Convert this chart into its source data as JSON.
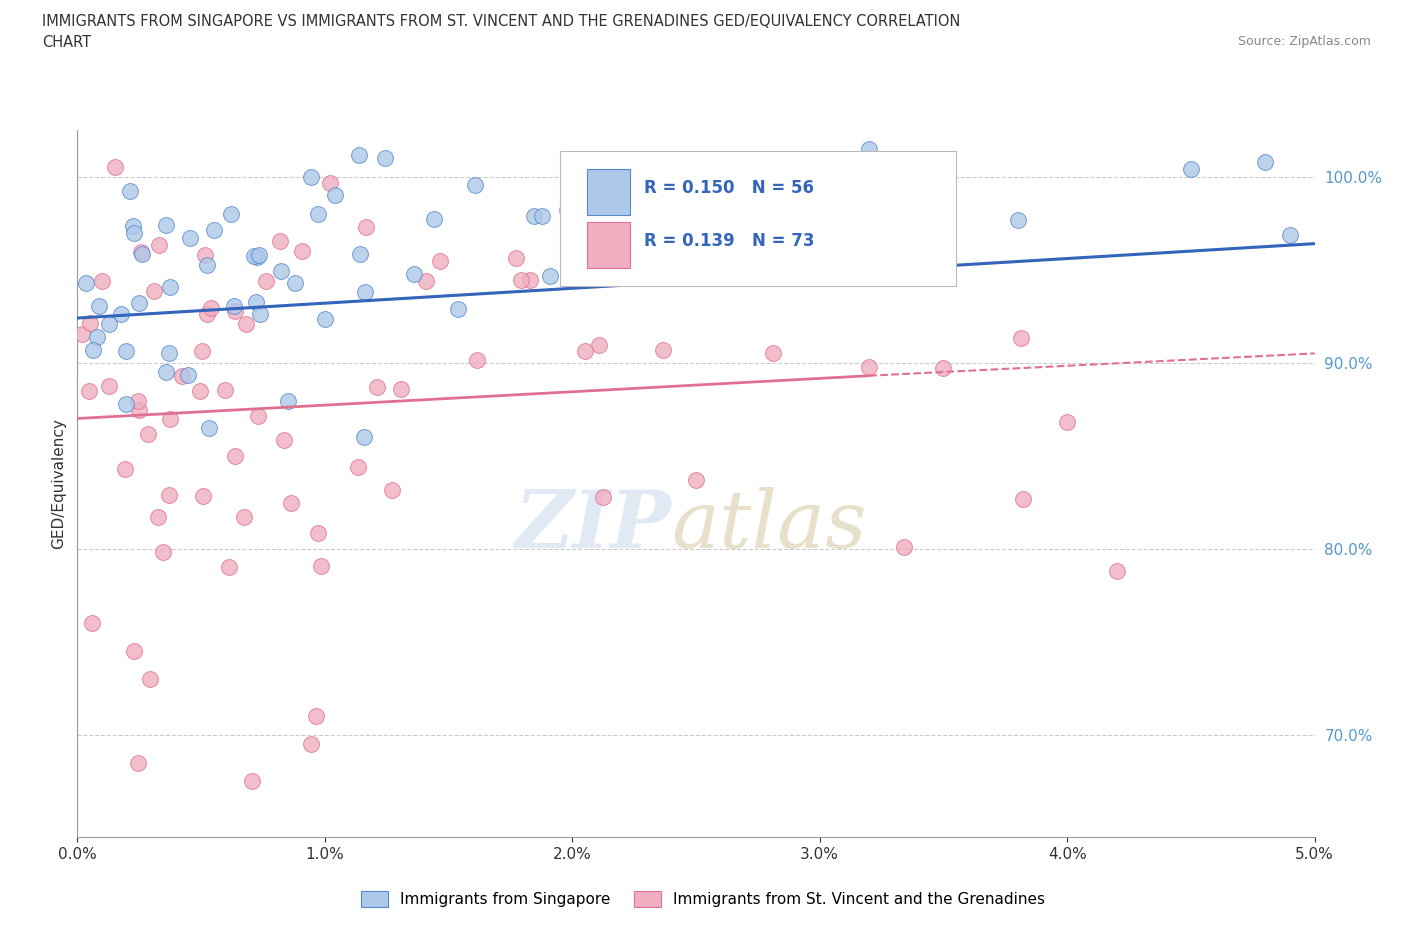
{
  "title_line1": "IMMIGRANTS FROM SINGAPORE VS IMMIGRANTS FROM ST. VINCENT AND THE GRENADINES GED/EQUIVALENCY CORRELATION",
  "title_line2": "CHART",
  "source_text": "Source: ZipAtlas.com",
  "ylabel": "GED/Equivalency",
  "xlim": [
    0.0,
    0.05
  ],
  "ylim": [
    0.645,
    1.025
  ],
  "right_yticks": [
    0.7,
    0.8,
    0.9,
    1.0
  ],
  "right_yticklabels": [
    "70.0%",
    "80.0%",
    "90.0%",
    "100.0%"
  ],
  "xticks": [
    0.0,
    0.01,
    0.02,
    0.03,
    0.04,
    0.05
  ],
  "xticklabels": [
    "0.0%",
    "1.0%",
    "2.0%",
    "3.0%",
    "4.0%",
    "5.0%"
  ],
  "color_singapore": "#adc8e8",
  "color_stvincent": "#f0aec0",
  "edge_singapore": "#5588cc",
  "edge_stvincent": "#e07090",
  "trendline_sg_color": "#3366bb",
  "trendline_sv_color": "#e07090",
  "R_singapore": 0.15,
  "N_singapore": 56,
  "R_stvincent": 0.139,
  "N_stvincent": 73,
  "legend_label_singapore": "Immigrants from Singapore",
  "legend_label_stvincent": "Immigrants from St. Vincent and the Grenadines",
  "sg_trend_x0": 0.0,
  "sg_trend_y0": 0.924,
  "sg_trend_x1": 0.05,
  "sg_trend_y1": 0.964,
  "sv_trend_x0": 0.0,
  "sv_trend_y0": 0.87,
  "sv_trend_x1": 0.05,
  "sv_trend_y1": 0.905,
  "sv_trend_solid_x1": 0.032,
  "sv_trend_solid_y1": 0.893
}
